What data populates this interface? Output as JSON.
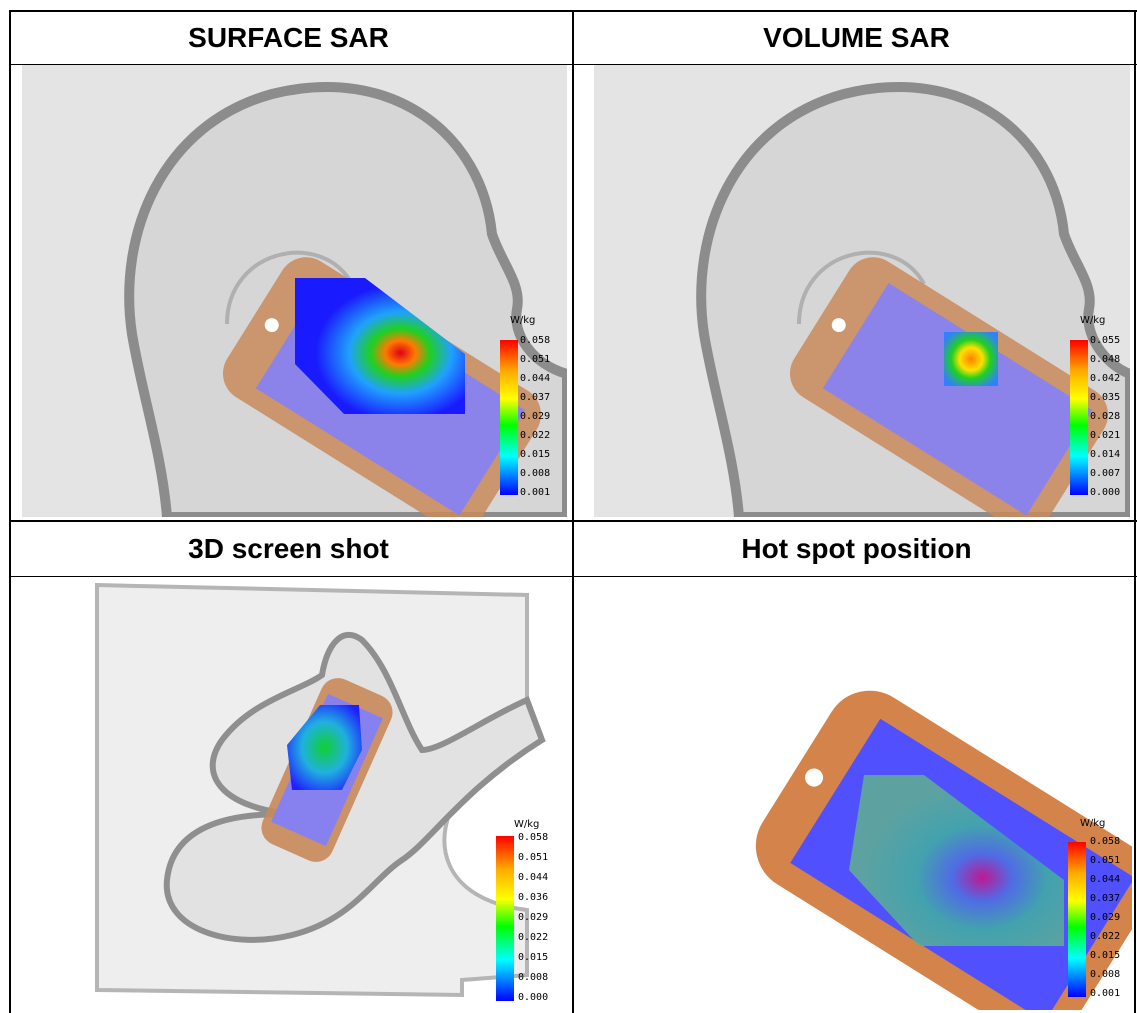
{
  "table": {
    "cells": [
      {
        "title": "SURFACE SAR",
        "unit": "W/kg",
        "scale": [
          "0.058",
          "0.051",
          "0.044",
          "0.037",
          "0.029",
          "0.022",
          "0.015",
          "0.008",
          "0.001"
        ]
      },
      {
        "title": "VOLUME SAR",
        "unit": "W/kg",
        "scale": [
          "0.055",
          "0.048",
          "0.042",
          "0.035",
          "0.028",
          "0.021",
          "0.014",
          "0.007",
          "0.000"
        ]
      },
      {
        "title": "3D screen shot",
        "unit": "W/kg",
        "scale": [
          "0.058",
          "0.051",
          "0.044",
          "0.036",
          "0.029",
          "0.022",
          "0.015",
          "0.008",
          "0.000"
        ]
      },
      {
        "title": "Hot spot position",
        "unit": "W/kg",
        "scale": [
          "0.058",
          "0.051",
          "0.044",
          "0.037",
          "0.029",
          "0.022",
          "0.015",
          "0.008",
          "0.001"
        ]
      }
    ]
  },
  "colors": {
    "phone_body": "#d4884f",
    "phone_screen": "#7b7bff",
    "head": "#e6e6e6",
    "head_outline": "#8c8c8c",
    "colorbar": [
      "#ff0000",
      "#ffaa00",
      "#ffff00",
      "#00ff00",
      "#00ffff",
      "#0000ff"
    ]
  }
}
